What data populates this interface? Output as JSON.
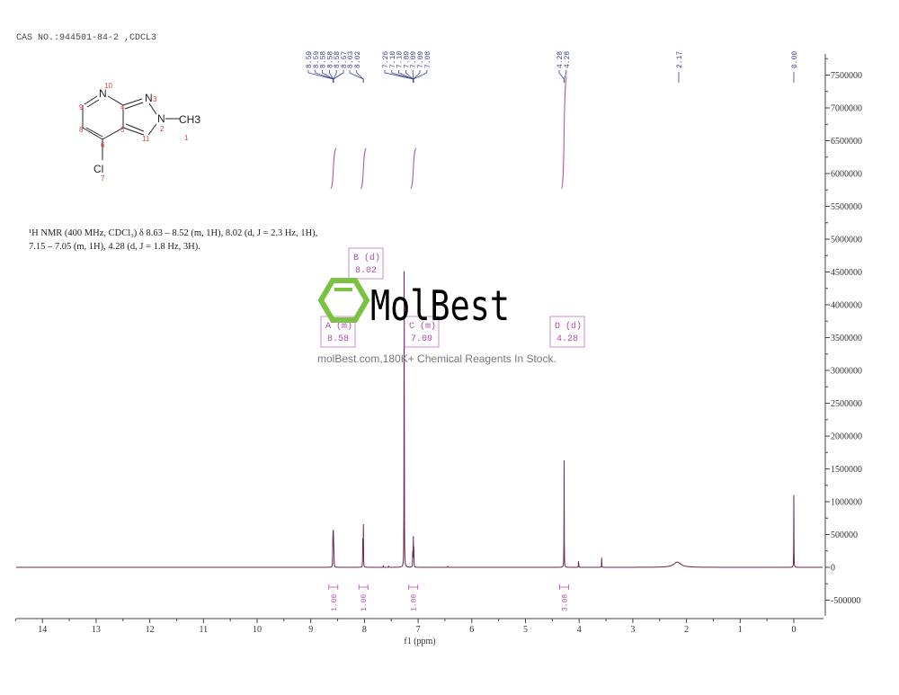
{
  "header": {
    "cas_line": "CAS NO.:944501-84-2 ,CDCL3"
  },
  "description": {
    "line1": "¹H NMR (400 MHz, CDCl₃) δ 8.63 – 8.52 (m, 1H), 8.02 (d, J = 2.3 Hz, 1H),",
    "line2": "7.15 – 7.05 (m, 1H), 4.28 (d, J = 1.8 Hz, 3H)."
  },
  "structure": {
    "atoms": [
      "N",
      "N",
      "N",
      "CH3",
      "Cl"
    ],
    "numbers": [
      "1",
      "2",
      "3",
      "4",
      "5",
      "6",
      "7",
      "8",
      "9",
      "10",
      "11"
    ]
  },
  "watermark": {
    "logo": "MolBest",
    "text": "molBest.com,180K+ Chemical Reagents In Stock."
  },
  "colors": {
    "spectrum": "#8b1a1a",
    "peak_labels": "#3a3f9a",
    "annotations": "#b04cb0",
    "logo_green": "#7cc242"
  },
  "chart_data": {
    "type": "line",
    "xlabel": "f1 (ppm)",
    "xlim": [
      14.5,
      -0.55
    ],
    "x_reversed": true,
    "ylim": [
      -700000,
      7800000
    ],
    "xticks": [
      "14",
      "13",
      "12",
      "11",
      "10",
      "9",
      "8",
      "7",
      "6",
      "5",
      "4",
      "3",
      "2",
      "1",
      "0"
    ],
    "yticks": [
      "7500000",
      "7000000",
      "6500000",
      "6000000",
      "5500000",
      "5000000",
      "4500000",
      "4000000",
      "3500000",
      "3000000",
      "2500000",
      "2000000",
      "1500000",
      "1000000",
      "500000",
      "0",
      "-500000"
    ],
    "peaks": [
      {
        "ppm": 8.59,
        "intensity": 400000
      },
      {
        "ppm": 8.585,
        "intensity": 400000
      },
      {
        "ppm": 8.58,
        "intensity": 420000
      },
      {
        "ppm": 8.575,
        "intensity": 400000
      },
      {
        "ppm": 8.57,
        "intensity": 300000
      },
      {
        "ppm": 8.03,
        "intensity": 700000
      },
      {
        "ppm": 8.02,
        "intensity": 700000
      },
      {
        "ppm": 7.65,
        "intensity": 30000
      },
      {
        "ppm": 7.55,
        "intensity": 25000
      },
      {
        "ppm": 7.26,
        "intensity": 6100000
      },
      {
        "ppm": 7.1,
        "intensity": 400000
      },
      {
        "ppm": 7.09,
        "intensity": 450000
      },
      {
        "ppm": 7.08,
        "intensity": 380000
      },
      {
        "ppm": 6.45,
        "intensity": 25000
      },
      {
        "ppm": 4.28,
        "intensity": 1650000
      },
      {
        "ppm": 4.01,
        "intensity": 150000
      },
      {
        "ppm": 3.58,
        "intensity": 150000
      },
      {
        "ppm": 2.17,
        "intensity": 80000,
        "broad": true
      },
      {
        "ppm": 0.0,
        "intensity": 1100000
      }
    ],
    "peak_label_groups": [
      {
        "labels": [
          "8.59",
          "8.59",
          "8.58",
          "8.58",
          "8.58",
          "8.57"
        ],
        "ppm": 8.58
      },
      {
        "labels": [
          "8.03",
          "8.02"
        ],
        "ppm": 8.02
      },
      {
        "labels": [
          "7.26",
          "7.10",
          "7.10",
          "7.09",
          "7.09",
          "7.09",
          "7.08"
        ],
        "ppm": 7.09
      },
      {
        "labels": [
          "4.28",
          "4.28"
        ],
        "ppm": 4.28
      },
      {
        "labels": [
          "2.17"
        ],
        "ppm": 2.17
      },
      {
        "labels": [
          "0.00"
        ],
        "ppm": 0.0
      }
    ],
    "multiplets": [
      {
        "id": "A",
        "type": "(m)",
        "shift": "8.58",
        "ppm": 8.58
      },
      {
        "id": "B",
        "type": "(d)",
        "shift": "8.02",
        "ppm": 8.02
      },
      {
        "id": "C",
        "type": "(m)",
        "shift": "7.09",
        "ppm": 7.09
      },
      {
        "id": "D",
        "type": "(d)",
        "shift": "4.28",
        "ppm": 4.28
      }
    ],
    "integrals": [
      {
        "ppm": 8.58,
        "value": "1.00"
      },
      {
        "ppm": 8.02,
        "value": "1.00"
      },
      {
        "ppm": 7.09,
        "value": "1.00"
      },
      {
        "ppm": 4.28,
        "value": "3.08"
      }
    ]
  }
}
